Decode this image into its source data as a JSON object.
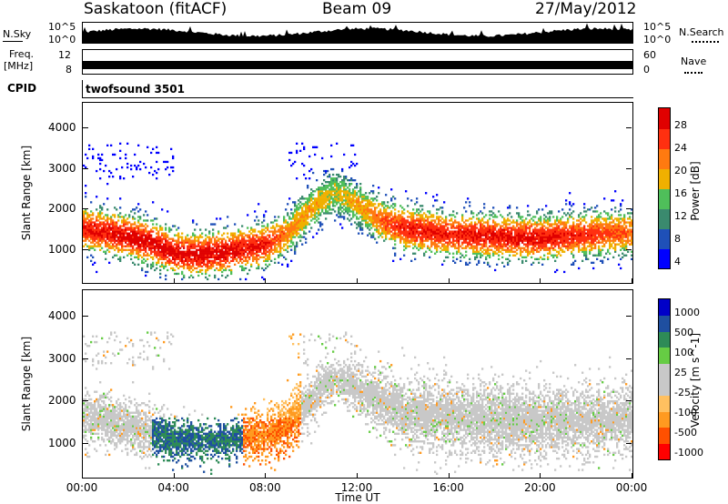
{
  "header": {
    "station": "Saskatoon (fitACF)",
    "beam": "Beam 09",
    "date": "27/May/2012"
  },
  "top_panels": {
    "nsky_label": "N.Sky",
    "nsky_ticks": [
      "10^5",
      "10^0"
    ],
    "nsearch_label": "N.Search",
    "nsearch_ticks": [
      "10^5",
      "10^0"
    ],
    "freq_label": "Freq.",
    "freq_unit": "[MHz]",
    "freq_ticks": [
      "12",
      "8"
    ],
    "nave_label": "Nave",
    "nave_ticks": [
      "60",
      "0"
    ],
    "cpid_label": "CPID",
    "cpid_value": "twofsound 3501"
  },
  "chart_data": [
    {
      "type": "heatmap",
      "name": "power",
      "ylabel": "Slant Range [km]",
      "ylim": [
        180,
        4600
      ],
      "yticks": [
        1000,
        2000,
        3000,
        4000
      ],
      "xlim_hours": [
        0,
        24
      ],
      "colorbar": {
        "label": "Power [dB]",
        "ticks": [
          "28",
          "24",
          "20",
          "16",
          "12",
          "8",
          "4"
        ],
        "colors": [
          "#0000ff",
          "#1f50b8",
          "#3a8a6e",
          "#4fbf5a",
          "#f0b000",
          "#ff7a10",
          "#ff3010",
          "#e00000"
        ],
        "range": [
          0,
          30
        ]
      },
      "band": {
        "hours": [
          0,
          1,
          2,
          3,
          4,
          5,
          6,
          7,
          8,
          9,
          10,
          11,
          12,
          13,
          14,
          16,
          18,
          20,
          22,
          24
        ],
        "center": [
          1500,
          1400,
          1300,
          1150,
          900,
          850,
          900,
          1000,
          1100,
          1400,
          2000,
          2400,
          2100,
          1700,
          1500,
          1350,
          1300,
          1250,
          1350,
          1400
        ],
        "power": [
          26,
          27,
          28,
          28,
          28,
          28,
          28,
          27,
          26,
          20,
          18,
          16,
          18,
          22,
          26,
          26,
          27,
          27,
          25,
          22
        ]
      }
    },
    {
      "type": "heatmap",
      "name": "velocity",
      "ylabel": "Slant Range [km]",
      "ylim": [
        180,
        4600
      ],
      "yticks": [
        1000,
        2000,
        3000,
        4000
      ],
      "xlabel": "Time UT",
      "xlim_hours": [
        0,
        24
      ],
      "xticks": [
        "00:00",
        "04:00",
        "08:00",
        "12:00",
        "16:00",
        "20:00",
        "00:00"
      ],
      "colorbar": {
        "label": "Velocity [m s^-1]",
        "ticks": [
          "1000",
          "500",
          "100",
          "25",
          "-25",
          "-100",
          "-500",
          "-1000"
        ],
        "colors": [
          "#ff0000",
          "#ff5000",
          "#ff9a20",
          "#ffc060",
          "#c8c8c8",
          "#c8c8c8",
          "#66cc44",
          "#2e8b57",
          "#1f4fa0",
          "#0000c8"
        ]
      },
      "band": {
        "hours": [
          0,
          2,
          4,
          6,
          8,
          9,
          10,
          11,
          12,
          14,
          18,
          22,
          24
        ],
        "center": [
          1600,
          1400,
          1050,
          1000,
          1200,
          1400,
          2000,
          2500,
          2300,
          1700,
          1500,
          1500,
          1550
        ],
        "width": [
          700,
          700,
          600,
          500,
          700,
          800,
          700,
          500,
          700,
          900,
          1000,
          900,
          900
        ]
      }
    }
  ]
}
